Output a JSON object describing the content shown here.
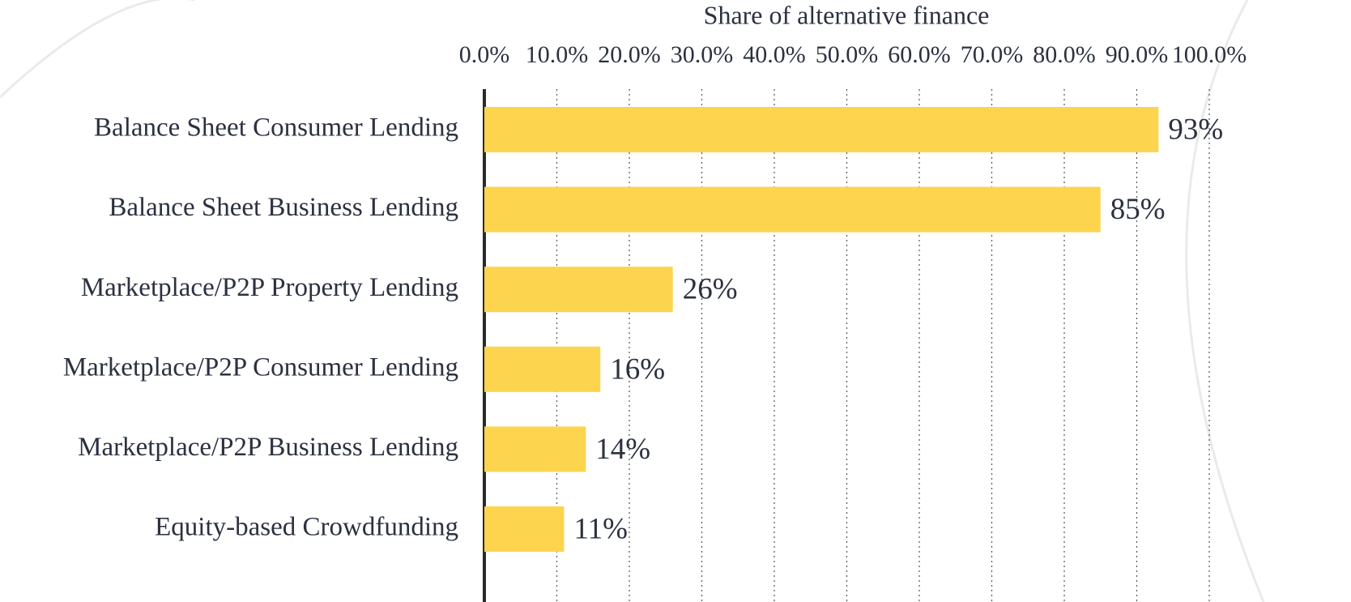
{
  "chart_data": {
    "type": "hbar",
    "x_label": "Share of alternative finance",
    "categories": [
      "Balance Sheet Consumer Lending",
      "Balance Sheet Business Lending",
      "Marketplace/P2P Property Lending",
      "Marketplace/P2P Consumer Lending",
      "Marketplace/P2P Business Lending",
      "Equity-based Crowdfunding"
    ],
    "values": [
      93,
      85,
      26,
      16,
      14,
      11
    ],
    "value_labels": [
      "93%",
      "85%",
      "26%",
      "16%",
      "14%",
      "11%"
    ],
    "color": "#fdd44d",
    "xlim": [
      0,
      100
    ],
    "xticks": [
      {
        "value": 0,
        "label": "0.0%"
      },
      {
        "value": 10,
        "label": "10.0%"
      },
      {
        "value": 20,
        "label": "20.0%"
      },
      {
        "value": 30,
        "label": "30.0%"
      },
      {
        "value": 40,
        "label": "40.0%"
      },
      {
        "value": 50,
        "label": "50.0%"
      },
      {
        "value": 60,
        "label": "60.0%"
      },
      {
        "value": 70,
        "label": "70.0%"
      },
      {
        "value": 80,
        "label": "80.0%"
      },
      {
        "value": 90,
        "label": "90.0%"
      },
      {
        "value": 100,
        "label": "100.0%"
      }
    ],
    "grid": true
  }
}
